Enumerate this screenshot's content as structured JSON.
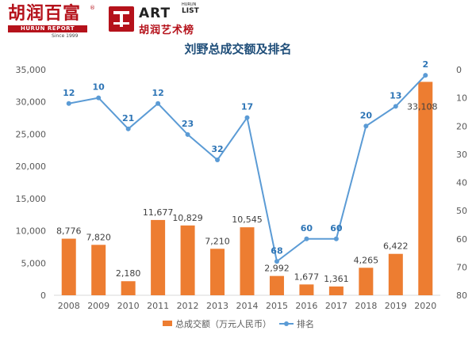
{
  "logos": {
    "hurun_cn": "胡润百富",
    "hurun_reg": "®",
    "hurun_report": "HURUN REPORT",
    "hurun_since": "Since 1999",
    "art_word": "ART",
    "list_word": "LIST",
    "hurun_vertical": "HURUN",
    "art_cn": "胡润艺术榜"
  },
  "colors": {
    "bar": "#ed7d31",
    "line": "#5b9bd5",
    "rank_label": "#2e75b6",
    "text": "#595959",
    "title": "#1f4e79"
  },
  "chart_data": {
    "type": "bar+line",
    "title": "刘野总成交额及排名",
    "categories": [
      "2008",
      "2009",
      "2010",
      "2011",
      "2012",
      "2013",
      "2014",
      "2015",
      "2016",
      "2017",
      "2018",
      "2019",
      "2020"
    ],
    "series": [
      {
        "name": "总成交额（万元人民币）",
        "type": "bar",
        "axis": "left",
        "values": [
          8776,
          7820,
          2180,
          11677,
          10829,
          7210,
          10545,
          2992,
          1677,
          1361,
          4265,
          6422,
          33108
        ],
        "labels": [
          "8,776",
          "7,820",
          "2,180",
          "11,677",
          "10,829",
          "7,210",
          "10,545",
          "2,992",
          "1,677",
          "1,361",
          "4,265",
          "6,422",
          "33,108"
        ]
      },
      {
        "name": "排名",
        "type": "line",
        "axis": "right",
        "values": [
          12,
          10,
          21,
          12,
          23,
          32,
          17,
          68,
          60,
          60,
          20,
          13,
          2
        ],
        "labels": [
          "12",
          "10",
          "21",
          "12",
          "23",
          "32",
          "17",
          "68",
          "60",
          "60",
          "20",
          "13",
          "2"
        ]
      }
    ],
    "left_axis": {
      "min": 0,
      "max": 35000,
      "ticks": [
        "0",
        "5,000",
        "10,000",
        "15,000",
        "20,000",
        "25,000",
        "30,000",
        "35,000"
      ]
    },
    "right_axis": {
      "min": 0,
      "max": 80,
      "reversed": true,
      "ticks": [
        "0",
        "10",
        "20",
        "30",
        "40",
        "50",
        "60",
        "70",
        "80"
      ]
    },
    "grid": false,
    "legend_position": "bottom"
  }
}
